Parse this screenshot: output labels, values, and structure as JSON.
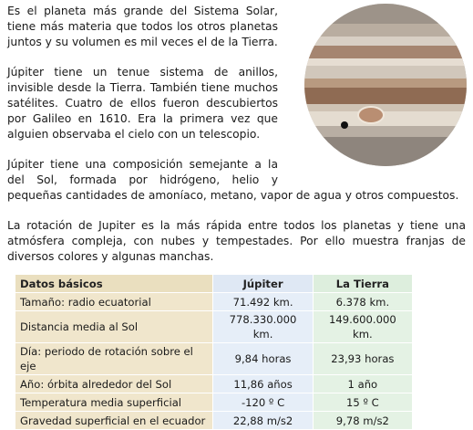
{
  "article": {
    "paragraphs": [
      "Es el planeta más grande del Sistema Solar, tiene más materia que todos los otros planetas juntos y su volumen es mil veces el de la Tierra.",
      "Júpiter tiene un tenue sistema de anillos, invisible desde la Tierra. También tiene muchos satélites. Cuatro de ellos fueron descubiertos por Galileo en 1610. Era la primera vez que alguien observaba el cielo con un telescopio.",
      "Júpiter tiene una composición semejante a la del Sol, formada por hidrógeno, helio y pequeñas cantidades de amoníaco, metano, vapor de agua y otros compuestos.",
      "La rotación de Jupiter es la más rápida entre todos los planetas y tiene una atmósfera compleja, con nubes y tempestades. Por ello muestra franjas de diversos colores y algunas manchas."
    ]
  },
  "table": {
    "headers": [
      "Datos básicos",
      "Júpiter",
      "La Tierra"
    ],
    "rows": [
      [
        "Tamaño: radio ecuatorial",
        "71.492 km.",
        "6.378 km."
      ],
      [
        "Distancia media al Sol",
        "778.330.000 km.",
        "149.600.000 km."
      ],
      [
        "Día: periodo de rotación sobre el eje",
        "9,84 horas",
        "23,93 horas"
      ],
      [
        "Año: órbita alrededor del Sol",
        "11,86 años",
        "1 año"
      ],
      [
        "Temperatura media superficial",
        "-120 º C",
        "15 º C"
      ],
      [
        "Gravedad superficial en el ecuador",
        "22,88 m/s2",
        "9,78 m/s2"
      ]
    ]
  },
  "colors": {
    "header_label_bg": "#eadfbf",
    "header_jupiter_bg": "#dfe8f4",
    "header_earth_bg": "#ddeedd",
    "label_cell_bg": "#f0e6cc",
    "jupiter_cell_bg": "#e6eef8",
    "earth_cell_bg": "#e4f2e4"
  },
  "image": {
    "subject": "jupiter-planet-image"
  }
}
